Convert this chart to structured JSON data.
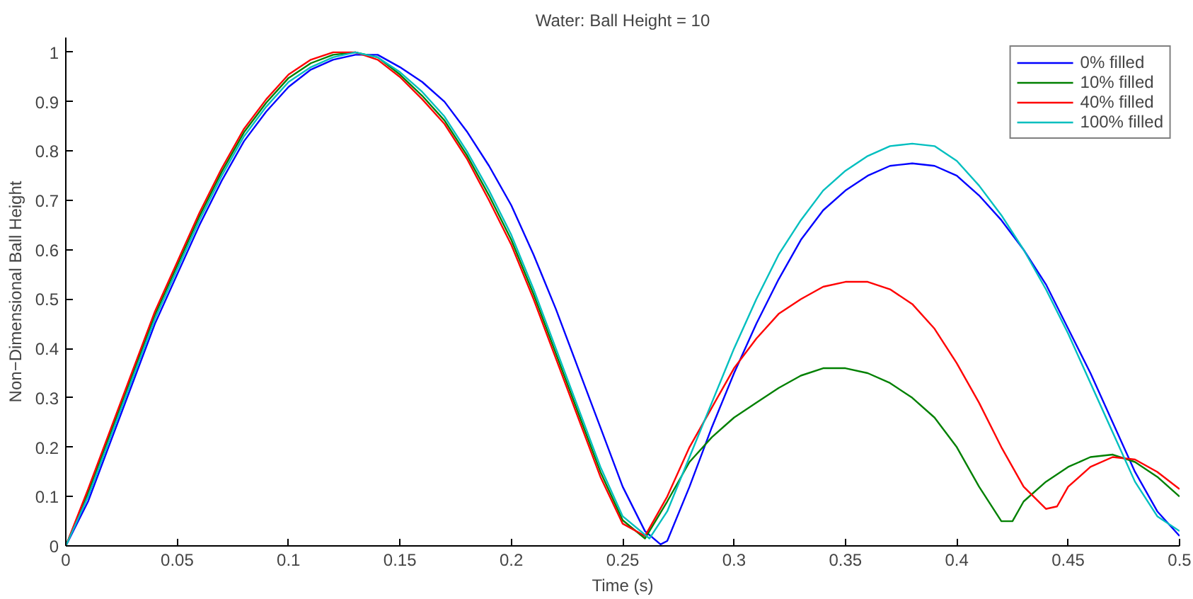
{
  "chart_data": {
    "type": "line",
    "title": "Water: Ball Height = 10",
    "xlabel": "Time (s)",
    "ylabel": "Non−Dimensional Ball Height",
    "xlim": [
      0,
      0.5
    ],
    "ylim": [
      0,
      1.03
    ],
    "xticks": [
      0,
      0.05,
      0.1,
      0.15,
      0.2,
      0.25,
      0.3,
      0.35,
      0.4,
      0.45,
      0.5
    ],
    "yticks": [
      0,
      0.1,
      0.2,
      0.3,
      0.4,
      0.5,
      0.6,
      0.7,
      0.8,
      0.9,
      1
    ],
    "grid": false,
    "legend": "top right",
    "marker": "none",
    "line_style": "solid",
    "series": [
      {
        "name": "0% filled",
        "color": "#0000ff",
        "x": [
          0,
          0.01,
          0.02,
          0.03,
          0.04,
          0.05,
          0.06,
          0.07,
          0.08,
          0.09,
          0.1,
          0.11,
          0.12,
          0.13,
          0.14,
          0.15,
          0.16,
          0.17,
          0.18,
          0.19,
          0.2,
          0.21,
          0.22,
          0.23,
          0.24,
          0.25,
          0.26,
          0.267,
          0.27,
          0.28,
          0.29,
          0.3,
          0.31,
          0.32,
          0.33,
          0.34,
          0.35,
          0.36,
          0.37,
          0.38,
          0.39,
          0.4,
          0.41,
          0.42,
          0.43,
          0.44,
          0.45,
          0.46,
          0.47,
          0.48,
          0.49,
          0.5
        ],
        "values": [
          0,
          0.09,
          0.21,
          0.33,
          0.45,
          0.55,
          0.65,
          0.74,
          0.82,
          0.88,
          0.93,
          0.965,
          0.985,
          0.995,
          0.995,
          0.97,
          0.94,
          0.9,
          0.84,
          0.77,
          0.69,
          0.59,
          0.48,
          0.36,
          0.24,
          0.12,
          0.03,
          0.003,
          0.01,
          0.12,
          0.24,
          0.35,
          0.45,
          0.54,
          0.62,
          0.68,
          0.72,
          0.75,
          0.77,
          0.775,
          0.77,
          0.75,
          0.71,
          0.66,
          0.6,
          0.53,
          0.44,
          0.35,
          0.25,
          0.15,
          0.07,
          0.02
        ]
      },
      {
        "name": "10% filled",
        "color": "#008000",
        "x": [
          0,
          0.01,
          0.02,
          0.03,
          0.04,
          0.05,
          0.06,
          0.07,
          0.08,
          0.09,
          0.1,
          0.11,
          0.12,
          0.13,
          0.14,
          0.15,
          0.16,
          0.17,
          0.18,
          0.19,
          0.2,
          0.21,
          0.22,
          0.23,
          0.24,
          0.25,
          0.26,
          0.27,
          0.28,
          0.29,
          0.3,
          0.31,
          0.32,
          0.33,
          0.34,
          0.35,
          0.36,
          0.37,
          0.38,
          0.39,
          0.4,
          0.41,
          0.42,
          0.425,
          0.43,
          0.44,
          0.45,
          0.46,
          0.47,
          0.48,
          0.49,
          0.5
        ],
        "values": [
          0,
          0.108,
          0.228,
          0.348,
          0.468,
          0.568,
          0.668,
          0.758,
          0.838,
          0.898,
          0.948,
          0.978,
          0.995,
          1.0,
          0.99,
          0.955,
          0.912,
          0.862,
          0.792,
          0.71,
          0.62,
          0.51,
          0.39,
          0.27,
          0.15,
          0.052,
          0.015,
          0.09,
          0.17,
          0.22,
          0.26,
          0.29,
          0.32,
          0.345,
          0.36,
          0.36,
          0.35,
          0.33,
          0.3,
          0.26,
          0.2,
          0.12,
          0.05,
          0.05,
          0.09,
          0.13,
          0.16,
          0.18,
          0.185,
          0.17,
          0.14,
          0.1
        ]
      },
      {
        "name": "40% filled",
        "color": "#ff0000",
        "x": [
          0,
          0.01,
          0.02,
          0.03,
          0.04,
          0.05,
          0.06,
          0.07,
          0.08,
          0.09,
          0.1,
          0.11,
          0.12,
          0.13,
          0.14,
          0.15,
          0.16,
          0.17,
          0.18,
          0.19,
          0.2,
          0.21,
          0.22,
          0.23,
          0.24,
          0.25,
          0.26,
          0.27,
          0.28,
          0.29,
          0.3,
          0.31,
          0.32,
          0.33,
          0.34,
          0.35,
          0.36,
          0.37,
          0.38,
          0.39,
          0.4,
          0.41,
          0.42,
          0.43,
          0.44,
          0.445,
          0.45,
          0.46,
          0.47,
          0.48,
          0.49,
          0.5
        ],
        "values": [
          0,
          0.115,
          0.235,
          0.355,
          0.475,
          0.575,
          0.675,
          0.765,
          0.845,
          0.905,
          0.955,
          0.985,
          1.0,
          1.0,
          0.985,
          0.95,
          0.905,
          0.855,
          0.785,
          0.7,
          0.61,
          0.5,
          0.38,
          0.26,
          0.14,
          0.045,
          0.02,
          0.1,
          0.2,
          0.28,
          0.36,
          0.42,
          0.47,
          0.5,
          0.525,
          0.535,
          0.535,
          0.52,
          0.49,
          0.44,
          0.37,
          0.29,
          0.2,
          0.12,
          0.075,
          0.08,
          0.12,
          0.16,
          0.18,
          0.175,
          0.15,
          0.115
        ]
      },
      {
        "name": "100% filled",
        "color": "#00bfbf",
        "x": [
          0,
          0.01,
          0.02,
          0.03,
          0.04,
          0.05,
          0.06,
          0.07,
          0.08,
          0.09,
          0.1,
          0.11,
          0.12,
          0.13,
          0.14,
          0.15,
          0.16,
          0.17,
          0.18,
          0.19,
          0.2,
          0.21,
          0.22,
          0.23,
          0.24,
          0.25,
          0.262,
          0.27,
          0.28,
          0.29,
          0.3,
          0.31,
          0.32,
          0.33,
          0.34,
          0.35,
          0.36,
          0.37,
          0.38,
          0.39,
          0.4,
          0.41,
          0.42,
          0.43,
          0.44,
          0.45,
          0.46,
          0.47,
          0.48,
          0.49,
          0.5
        ],
        "values": [
          0,
          0.1,
          0.22,
          0.34,
          0.46,
          0.56,
          0.66,
          0.75,
          0.83,
          0.89,
          0.94,
          0.97,
          0.99,
          1.0,
          0.99,
          0.96,
          0.92,
          0.87,
          0.8,
          0.72,
          0.63,
          0.52,
          0.4,
          0.28,
          0.16,
          0.06,
          0.015,
          0.07,
          0.18,
          0.29,
          0.4,
          0.5,
          0.59,
          0.66,
          0.72,
          0.76,
          0.79,
          0.81,
          0.815,
          0.81,
          0.78,
          0.73,
          0.67,
          0.6,
          0.52,
          0.43,
          0.33,
          0.23,
          0.13,
          0.06,
          0.03
        ]
      }
    ]
  }
}
